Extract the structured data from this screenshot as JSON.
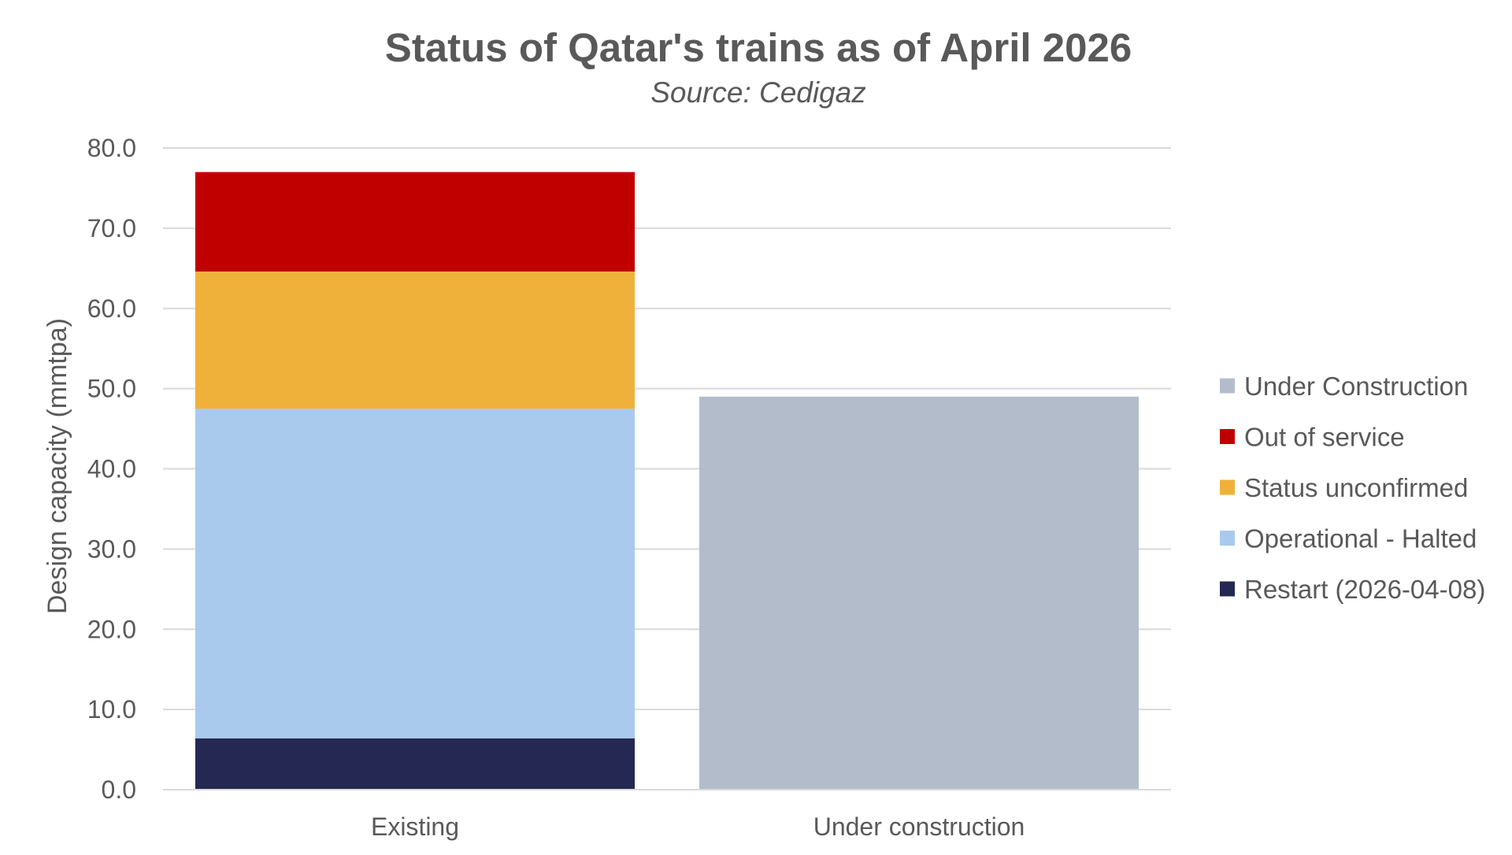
{
  "chart_data": {
    "type": "bar",
    "stacked": true,
    "title": "Status of Qatar's trains as of April 2026",
    "subtitle": "Source: Cedigaz",
    "xlabel": "",
    "ylabel": "Design capacity (mmtpa)",
    "ylim": [
      0,
      80
    ],
    "ytick_step": 10,
    "ytick_labels": [
      "0.0",
      "10.0",
      "20.0",
      "30.0",
      "40.0",
      "50.0",
      "60.0",
      "70.0",
      "80.0"
    ],
    "grid": true,
    "legend_position": "right",
    "categories": [
      "Existing",
      "Under construction"
    ],
    "series": [
      {
        "name": "Restart (2026-04-08)",
        "color": "#252853",
        "values": [
          6.4,
          0
        ]
      },
      {
        "name": "Operational - Halted",
        "color": "#a9caed",
        "values": [
          41.1,
          0
        ]
      },
      {
        "name": "Status unconfirmed",
        "color": "#f0b13a",
        "values": [
          17.1,
          0
        ]
      },
      {
        "name": "Out of service",
        "color": "#c00000",
        "values": [
          12.4,
          0
        ]
      },
      {
        "name": "Under Construction",
        "color": "#b2bccb",
        "values": [
          0,
          49
        ]
      }
    ],
    "legend_order": [
      "Under Construction",
      "Out of service",
      "Status unconfirmed",
      "Operational - Halted",
      "Restart (2026-04-08)"
    ]
  }
}
